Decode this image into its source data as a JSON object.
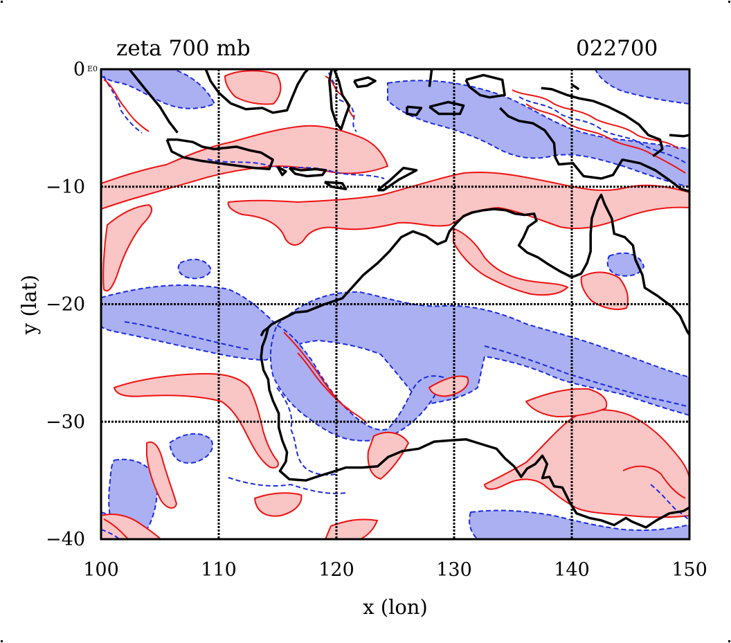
{
  "header": {
    "title": "zeta 700 mb",
    "timestamp": "022700",
    "corner_mark": "E0"
  },
  "chart_data": {
    "type": "contour",
    "variable": "zeta",
    "level": "700 mb",
    "xlabel": "x (lon)",
    "ylabel": "y (lat)",
    "xlim": [
      100,
      150
    ],
    "ylim": [
      -40,
      0
    ],
    "x_ticks": [
      100,
      110,
      120,
      130,
      140,
      150
    ],
    "y_ticks": [
      0,
      -10,
      -20,
      -30,
      -40
    ],
    "x_tick_labels": [
      "100",
      "110",
      "120",
      "130",
      "140",
      "150"
    ],
    "y_tick_labels": [
      "0",
      "−10",
      "−20",
      "−30",
      "−40"
    ],
    "grid": true,
    "coastline_color": "#000000",
    "colors": {
      "positive_line": "#ee1111",
      "positive_fill": "#f9c5c5",
      "negative_line": "#1a2ae0",
      "negative_fill": "#aab0f2"
    },
    "coastline": [
      [
        [
          114.2,
          -22.0
        ],
        [
          114.5,
          -21.7
        ],
        [
          115.5,
          -21.2
        ],
        [
          116.5,
          -20.7
        ],
        [
          117.5,
          -20.6
        ],
        [
          119.0,
          -20.0
        ],
        [
          120.5,
          -19.5
        ],
        [
          121.4,
          -18.5
        ],
        [
          122.3,
          -17.5
        ],
        [
          123.5,
          -16.5
        ],
        [
          124.5,
          -15.5
        ],
        [
          125.5,
          -14.3
        ],
        [
          126.5,
          -13.8
        ],
        [
          127.6,
          -14.2
        ],
        [
          128.6,
          -14.9
        ],
        [
          129.3,
          -14.6
        ],
        [
          129.6,
          -13.8
        ],
        [
          130.2,
          -13.1
        ],
        [
          130.8,
          -12.5
        ],
        [
          131.5,
          -12.2
        ],
        [
          132.5,
          -12.0
        ],
        [
          133.4,
          -11.9
        ],
        [
          134.4,
          -12.0
        ],
        [
          135.2,
          -12.3
        ],
        [
          136.0,
          -12.4
        ],
        [
          136.8,
          -12.3
        ],
        [
          137.0,
          -12.9
        ],
        [
          136.3,
          -13.4
        ],
        [
          135.9,
          -14.3
        ],
        [
          135.5,
          -15.0
        ],
        [
          136.2,
          -15.6
        ],
        [
          137.1,
          -16.0
        ],
        [
          138.0,
          -16.6
        ],
        [
          139.0,
          -17.2
        ],
        [
          140.0,
          -17.7
        ],
        [
          140.8,
          -17.4
        ],
        [
          141.3,
          -16.5
        ],
        [
          141.6,
          -15.5
        ],
        [
          141.6,
          -14.0
        ],
        [
          141.7,
          -12.7
        ],
        [
          142.2,
          -11.2
        ],
        [
          142.5,
          -10.7
        ],
        [
          142.8,
          -11.5
        ],
        [
          143.4,
          -12.7
        ],
        [
          143.6,
          -14.0
        ],
        [
          144.5,
          -14.3
        ],
        [
          145.2,
          -15.0
        ],
        [
          145.4,
          -16.2
        ],
        [
          146.0,
          -17.5
        ],
        [
          146.2,
          -18.6
        ],
        [
          147.3,
          -19.3
        ],
        [
          148.5,
          -20.2
        ],
        [
          149.2,
          -21.0
        ],
        [
          149.8,
          -22.3
        ],
        [
          150.0,
          -22.6
        ]
      ],
      [
        [
          114.2,
          -22.0
        ],
        [
          114.0,
          -22.8
        ],
        [
          113.7,
          -23.6
        ],
        [
          113.6,
          -24.5
        ],
        [
          113.8,
          -25.6
        ],
        [
          114.2,
          -26.4
        ],
        [
          114.3,
          -27.3
        ],
        [
          114.6,
          -28.2
        ],
        [
          115.1,
          -29.3
        ],
        [
          115.1,
          -30.5
        ],
        [
          115.4,
          -31.6
        ],
        [
          115.8,
          -32.6
        ],
        [
          115.7,
          -33.4
        ],
        [
          115.2,
          -34.2
        ],
        [
          116.0,
          -34.9
        ],
        [
          117.4,
          -35.0
        ],
        [
          118.6,
          -34.6
        ],
        [
          119.6,
          -34.3
        ],
        [
          120.8,
          -33.9
        ],
        [
          122.2,
          -33.9
        ],
        [
          123.5,
          -33.8
        ],
        [
          124.4,
          -33.0
        ],
        [
          125.6,
          -32.5
        ],
        [
          127.0,
          -32.3
        ],
        [
          128.3,
          -31.7
        ],
        [
          129.6,
          -31.6
        ],
        [
          131.0,
          -31.5
        ],
        [
          132.3,
          -31.9
        ],
        [
          133.6,
          -32.3
        ],
        [
          134.3,
          -33.1
        ],
        [
          135.1,
          -33.8
        ],
        [
          135.7,
          -34.7
        ],
        [
          136.2,
          -34.0
        ],
        [
          136.9,
          -33.6
        ],
        [
          137.5,
          -32.9
        ],
        [
          137.9,
          -33.6
        ],
        [
          137.5,
          -34.8
        ],
        [
          138.1,
          -34.7
        ],
        [
          138.5,
          -35.5
        ],
        [
          139.2,
          -35.6
        ],
        [
          139.8,
          -36.8
        ],
        [
          140.4,
          -37.8
        ],
        [
          141.5,
          -38.2
        ],
        [
          142.5,
          -38.4
        ],
        [
          143.6,
          -38.8
        ],
        [
          144.6,
          -38.2
        ],
        [
          145.1,
          -38.5
        ],
        [
          146.3,
          -39.0
        ],
        [
          147.2,
          -38.4
        ],
        [
          148.3,
          -37.8
        ],
        [
          149.5,
          -37.6
        ],
        [
          150.0,
          -37.3
        ]
      ],
      [
        [
          114.2,
          -22.0
        ],
        [
          113.8,
          -22.3
        ],
        [
          113.6,
          -22.7
        ]
      ],
      [
        [
          102.4,
          0.0
        ],
        [
          103.2,
          -1.0
        ],
        [
          104.0,
          -2.0
        ],
        [
          105.0,
          -3.2
        ],
        [
          105.8,
          -4.5
        ],
        [
          106.5,
          -5.4
        ]
      ],
      [
        [
          105.6,
          -6.0
        ],
        [
          106.5,
          -6.0
        ],
        [
          107.8,
          -6.2
        ],
        [
          108.6,
          -6.6
        ],
        [
          109.6,
          -6.8
        ],
        [
          110.5,
          -6.7
        ],
        [
          111.5,
          -6.6
        ],
        [
          112.6,
          -6.9
        ],
        [
          113.6,
          -7.1
        ],
        [
          114.6,
          -7.7
        ],
        [
          114.3,
          -8.5
        ],
        [
          113.0,
          -8.4
        ],
        [
          111.5,
          -8.2
        ],
        [
          110.0,
          -8.0
        ],
        [
          108.5,
          -7.8
        ],
        [
          107.0,
          -7.5
        ],
        [
          106.0,
          -7.0
        ],
        [
          105.6,
          -6.0
        ]
      ],
      [
        [
          115.0,
          -8.3
        ],
        [
          115.7,
          -8.7
        ],
        [
          115.4,
          -9.0
        ],
        [
          115.0,
          -8.3
        ]
      ],
      [
        [
          116.0,
          -8.4
        ],
        [
          117.0,
          -8.6
        ],
        [
          118.3,
          -8.5
        ],
        [
          119.1,
          -8.6
        ],
        [
          118.8,
          -9.0
        ],
        [
          117.5,
          -9.1
        ],
        [
          116.5,
          -8.9
        ],
        [
          116.0,
          -8.4
        ]
      ],
      [
        [
          119.0,
          -9.6
        ],
        [
          120.5,
          -9.7
        ],
        [
          120.8,
          -10.2
        ],
        [
          119.6,
          -10.0
        ],
        [
          119.0,
          -9.6
        ]
      ],
      [
        [
          123.5,
          -10.3
        ],
        [
          124.5,
          -9.5
        ],
        [
          125.7,
          -8.4
        ],
        [
          126.8,
          -8.6
        ],
        [
          125.3,
          -9.4
        ],
        [
          124.0,
          -10.3
        ],
        [
          123.5,
          -10.3
        ]
      ],
      [
        [
          108.9,
          0.0
        ],
        [
          109.3,
          -1.0
        ],
        [
          110.0,
          -2.0
        ],
        [
          111.0,
          -2.9
        ],
        [
          112.3,
          -3.4
        ],
        [
          113.7,
          -3.3
        ],
        [
          114.6,
          -3.7
        ],
        [
          115.8,
          -3.5
        ],
        [
          116.2,
          -2.5
        ],
        [
          116.7,
          -1.3
        ],
        [
          117.3,
          -0.3
        ],
        [
          117.6,
          0.0
        ]
      ],
      [
        [
          119.8,
          0.0
        ],
        [
          120.2,
          -1.0
        ],
        [
          120.5,
          -2.2
        ],
        [
          121.1,
          -3.1
        ],
        [
          120.8,
          -3.9
        ],
        [
          120.4,
          -5.1
        ],
        [
          120.0,
          -4.6
        ],
        [
          119.6,
          -3.4
        ],
        [
          119.5,
          -2.1
        ],
        [
          119.4,
          -1.0
        ],
        [
          119.6,
          0.0
        ]
      ],
      [
        [
          121.5,
          -1.0
        ],
        [
          122.7,
          -0.7
        ],
        [
          123.3,
          -1.0
        ],
        [
          122.6,
          -1.4
        ],
        [
          121.8,
          -1.5
        ],
        [
          121.5,
          -1.0
        ]
      ],
      [
        [
          126.0,
          -3.2
        ],
        [
          127.2,
          -3.3
        ],
        [
          126.8,
          -3.9
        ],
        [
          126.0,
          -3.8
        ],
        [
          126.0,
          -3.2
        ]
      ],
      [
        [
          127.9,
          -3.2
        ],
        [
          129.5,
          -2.8
        ],
        [
          130.8,
          -3.1
        ],
        [
          130.5,
          -3.8
        ],
        [
          128.7,
          -3.8
        ],
        [
          127.9,
          -3.2
        ]
      ],
      [
        [
          128.1,
          0.0
        ],
        [
          128.0,
          -0.8
        ],
        [
          127.9,
          -1.5
        ]
      ],
      [
        [
          131.0,
          -0.9
        ],
        [
          132.5,
          -0.5
        ],
        [
          134.1,
          -0.9
        ],
        [
          134.3,
          -2.2
        ],
        [
          133.0,
          -2.4
        ],
        [
          132.2,
          -2.2
        ],
        [
          131.3,
          -1.5
        ],
        [
          131.0,
          -0.9
        ]
      ],
      [
        [
          133.9,
          -3.3
        ],
        [
          134.6,
          -4.0
        ],
        [
          135.5,
          -4.4
        ],
        [
          136.7,
          -4.6
        ],
        [
          137.7,
          -5.2
        ],
        [
          138.5,
          -6.3
        ],
        [
          138.6,
          -7.5
        ],
        [
          138.9,
          -8.1
        ],
        [
          140.1,
          -8.0
        ],
        [
          141.0,
          -9.1
        ],
        [
          142.5,
          -9.3
        ],
        [
          143.5,
          -9.0
        ],
        [
          144.3,
          -7.7
        ],
        [
          145.8,
          -8.0
        ],
        [
          147.1,
          -8.6
        ],
        [
          148.1,
          -9.3
        ],
        [
          149.3,
          -10.2
        ],
        [
          150.0,
          -10.4
        ]
      ],
      [
        [
          137.4,
          -1.6
        ],
        [
          138.3,
          -1.7
        ],
        [
          139.6,
          -2.2
        ],
        [
          140.7,
          -2.5
        ],
        [
          141.8,
          -2.7
        ],
        [
          143.1,
          -3.2
        ],
        [
          144.5,
          -3.9
        ],
        [
          145.7,
          -4.7
        ],
        [
          146.5,
          -5.6
        ],
        [
          147.5,
          -6.0
        ],
        [
          147.7,
          -6.8
        ],
        [
          146.9,
          -7.4
        ]
      ],
      [
        [
          148.3,
          -5.6
        ],
        [
          149.5,
          -5.7
        ],
        [
          150.0,
          -5.6
        ]
      ],
      [
        [
          140.0,
          -1.3
        ],
        [
          140.6,
          -1.7
        ]
      ]
    ]
  }
}
